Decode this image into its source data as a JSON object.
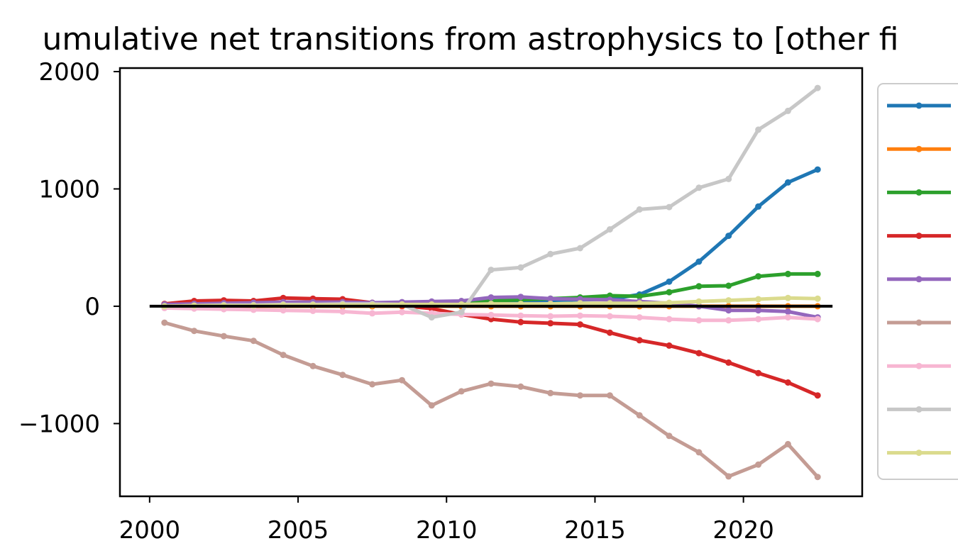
{
  "chart_data": {
    "type": "line",
    "title": "umulative net transitions from astrophysics to [other fi",
    "xlabel": "",
    "ylabel": "",
    "xlim": [
      1999,
      2024
    ],
    "ylim": [
      -1620,
      2030
    ],
    "xticks": [
      2000,
      2005,
      2010,
      2015,
      2020
    ],
    "xtick_labels": [
      "2000",
      "2005",
      "2010",
      "2015",
      "2020"
    ],
    "yticks": [
      2000,
      1000,
      0,
      -1000
    ],
    "ytick_labels": [
      "2000",
      "1000",
      "0",
      "−1000"
    ],
    "grid": false,
    "legend_position": "right, clipped",
    "zero_line": {
      "y": 0,
      "x_from": 2000,
      "x_to": 2023,
      "color": "#000000"
    },
    "x": [
      2000.5,
      2001.5,
      2002.5,
      2003.5,
      2004.5,
      2005.5,
      2006.5,
      2007.5,
      2008.5,
      2009.5,
      2010.5,
      2011.5,
      2012.5,
      2013.5,
      2014.5,
      2015.5,
      2016.5,
      2017.5,
      2018.5,
      2019.5,
      2020.5,
      2021.5,
      2022.5
    ],
    "series": [
      {
        "color": "#1f77b4",
        "values": [
          0,
          10,
          15,
          15,
          20,
          20,
          20,
          20,
          25,
          30,
          35,
          40,
          45,
          50,
          55,
          60,
          100,
          210,
          380,
          600,
          850,
          1055,
          1165
        ]
      },
      {
        "color": "#ff7f0e",
        "values": [
          0,
          0,
          0,
          0,
          0,
          0,
          0,
          0,
          0,
          0,
          0,
          0,
          0,
          0,
          0,
          0,
          0,
          0,
          0,
          0,
          0,
          0,
          0
        ]
      },
      {
        "color": "#2ca02c",
        "values": [
          10,
          15,
          20,
          20,
          25,
          25,
          25,
          25,
          30,
          35,
          40,
          45,
          55,
          65,
          75,
          90,
          85,
          120,
          170,
          175,
          255,
          275,
          275
        ]
      },
      {
        "color": "#d62728",
        "values": [
          20,
          45,
          50,
          45,
          70,
          65,
          60,
          30,
          5,
          -20,
          -70,
          -110,
          -135,
          -145,
          -155,
          -225,
          -290,
          -335,
          -400,
          -480,
          -570,
          -650,
          -760
        ]
      },
      {
        "color": "#9467bd",
        "values": [
          15,
          20,
          25,
          30,
          35,
          35,
          35,
          30,
          35,
          40,
          45,
          75,
          80,
          65,
          60,
          55,
          40,
          25,
          0,
          -35,
          -35,
          -45,
          -95
        ]
      },
      {
        "color": "#c49c94",
        "values": [
          -140,
          -210,
          -255,
          -295,
          -415,
          -510,
          -585,
          -665,
          -630,
          -845,
          -725,
          -660,
          -685,
          -740,
          -760,
          -760,
          -930,
          -1105,
          -1245,
          -1450,
          -1350,
          -1175,
          -1455
        ]
      },
      {
        "color": "#f7b6d2",
        "values": [
          -15,
          -20,
          -25,
          -30,
          -35,
          -40,
          -45,
          -60,
          -50,
          -60,
          -70,
          -75,
          -80,
          -85,
          -80,
          -85,
          -95,
          -110,
          -120,
          -120,
          -110,
          -95,
          -110
        ]
      },
      {
        "color": "#c7c7c7",
        "values": [
          0,
          5,
          10,
          10,
          15,
          15,
          20,
          20,
          15,
          -95,
          -50,
          310,
          330,
          445,
          495,
          655,
          825,
          845,
          1010,
          1085,
          1505,
          1665,
          1860
        ]
      },
      {
        "color": "#dbdb8d",
        "values": [
          0,
          5,
          5,
          5,
          10,
          10,
          10,
          10,
          15,
          15,
          15,
          20,
          20,
          20,
          25,
          25,
          25,
          30,
          40,
          50,
          60,
          70,
          65
        ]
      }
    ]
  }
}
